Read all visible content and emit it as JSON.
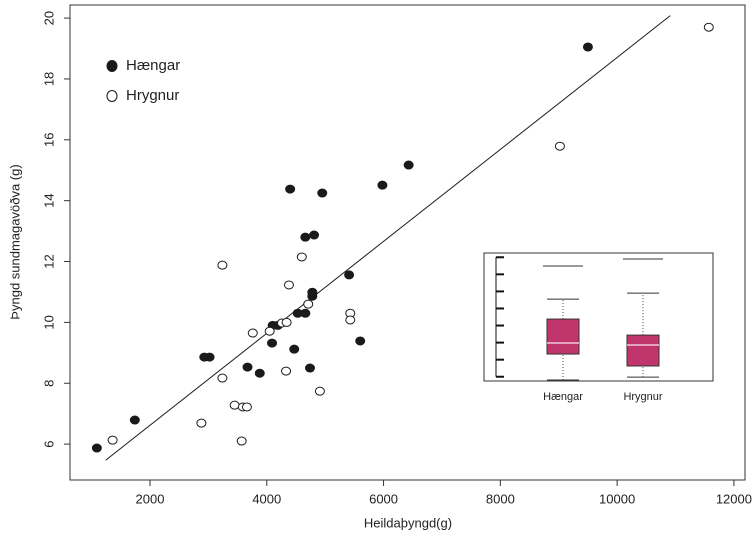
{
  "chart_data": [
    {
      "type": "scatter",
      "x_label": "Heildaþyngd(g)",
      "y_label": "Þyngd sundmagavöðva (g)",
      "xlim": [
        630,
        12190
      ],
      "xticks": [
        2000,
        4000,
        6000,
        8000,
        10000,
        12000
      ],
      "ylim": [
        4.82,
        20.43
      ],
      "yticks": [
        6,
        8,
        10,
        12,
        14,
        16,
        18,
        20
      ],
      "legend": "top-left",
      "series": [
        {
          "name": "Hængar",
          "marker": "filled",
          "color": "#1a1a1a",
          "x": [
            1090,
            1740,
            2930,
            3020,
            3670,
            3880,
            4090,
            4100,
            4190,
            4400,
            4470,
            4530,
            4660,
            4660,
            4810,
            4740,
            4780,
            4780,
            4950,
            5410,
            5600,
            5980,
            6430,
            9500
          ],
          "values": [
            5.87,
            6.79,
            8.86,
            8.86,
            8.53,
            8.33,
            9.32,
            9.9,
            9.9,
            14.38,
            9.12,
            10.3,
            10.3,
            12.8,
            12.87,
            8.5,
            10.86,
            10.99,
            14.25,
            11.56,
            9.39,
            14.51,
            15.17,
            19.05
          ]
        },
        {
          "name": "Hrygnur",
          "marker": "open",
          "color": "#1a1a1a",
          "x": [
            1360,
            2880,
            3240,
            3240,
            3450,
            3590,
            3660,
            3570,
            3760,
            4050,
            4260,
            4340,
            4330,
            4380,
            4600,
            4710,
            4910,
            5430,
            5430,
            9020,
            11570
          ],
          "values": [
            6.13,
            6.69,
            8.17,
            11.88,
            7.28,
            7.22,
            7.22,
            6.1,
            9.65,
            9.71,
            9.98,
            10.0,
            8.4,
            11.23,
            12.15,
            10.6,
            7.74,
            10.3,
            10.08,
            15.79,
            19.7
          ]
        }
      ],
      "fit_line": {
        "x": [
          1240,
          10910
        ],
        "y": [
          5.47,
          20.08
        ],
        "color": "#1a1a1a"
      }
    },
    {
      "type": "box",
      "categories": [
        "Hængar",
        "Hrygnur"
      ],
      "ylim": [
        -0.25,
        7.25
      ],
      "yticks": [
        0,
        1,
        2,
        3,
        4,
        5,
        6,
        7
      ],
      "color": "#c0356c",
      "median_color": "#f0c8d8",
      "boxes": [
        {
          "whisker_low": -0.19,
          "q1": 1.33,
          "median": 1.98,
          "q3": 3.38,
          "whisker_high": 4.55,
          "outliers": [
            6.49
          ]
        },
        {
          "whisker_low": -0.02,
          "q1": 0.63,
          "median": 1.86,
          "q3": 2.44,
          "whisker_high": 4.9,
          "outliers": [
            6.9
          ]
        }
      ]
    }
  ]
}
